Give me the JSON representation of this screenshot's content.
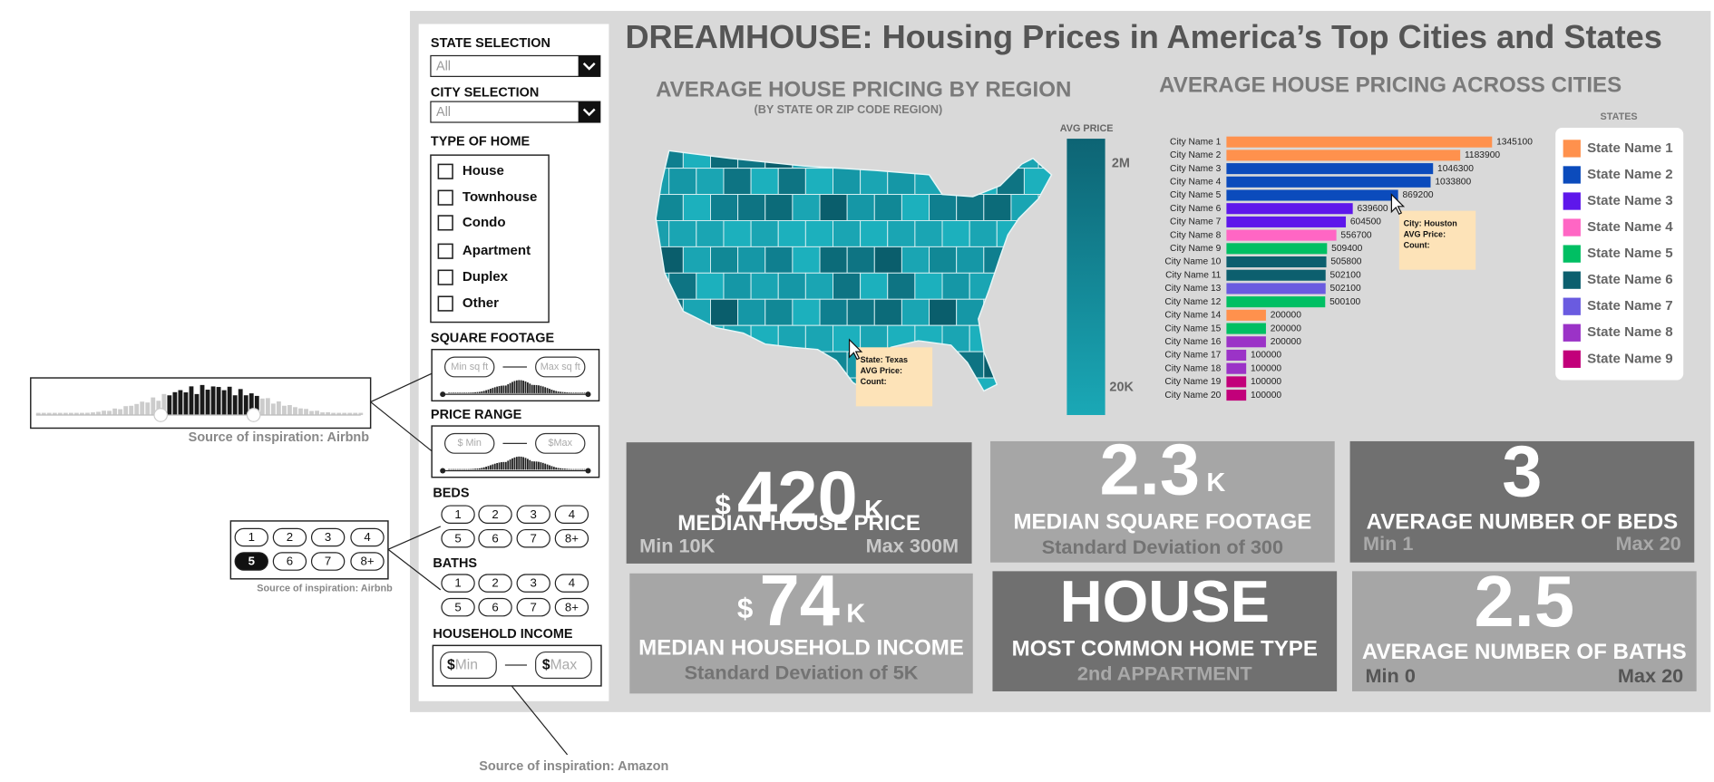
{
  "title": "DREAMHOUSE: Housing Prices in America’s Top Cities and States",
  "filters": {
    "state": {
      "label": "STATE SELECTION",
      "value": "All"
    },
    "city": {
      "label": "CITY SELECTION",
      "value": "All"
    },
    "home_type": {
      "label": "TYPE OF HOME",
      "options": [
        "House",
        "Townhouse",
        "Condo",
        "Apartment",
        "Duplex",
        "Other"
      ]
    },
    "square_footage": {
      "label": "SQUARE FOOTAGE",
      "min": "Min sq ft",
      "max": "Max sq ft"
    },
    "price_range": {
      "label": "PRICE RANGE",
      "min": "$ Min",
      "max": "$Max"
    },
    "beds": {
      "label": "BEDS",
      "options": [
        "1",
        "2",
        "3",
        "4",
        "5",
        "6",
        "7",
        "8+"
      ]
    },
    "baths": {
      "label": "BATHS",
      "options": [
        "1",
        "2",
        "3",
        "4",
        "5",
        "6",
        "7",
        "8+"
      ]
    },
    "household_income": {
      "label": "HOUSEHOLD INCOME",
      "currency": "$",
      "min": "Min",
      "max": "Max"
    }
  },
  "map": {
    "title": "AVERAGE HOUSE PRICING BY REGION",
    "subtitle": "(BY STATE OR ZIP CODE REGION)",
    "legend_title": "AVG  PRICE",
    "legend_ticks": [
      "2M",
      "20K"
    ],
    "tooltip": [
      "State: Texas",
      "AVG Price:",
      "Count:"
    ]
  },
  "chart_data": {
    "type": "bar",
    "title": "AVERAGE HOUSE PRICING ACROSS CITIES",
    "categories": [
      "City Name 1",
      "City Name 2",
      "City Name 3",
      "City Name 4",
      "City Name 5",
      "City Name 6",
      "City Name 7",
      "City Name 8",
      "City Name 9",
      "City Name 10",
      "City Name 11",
      "City Name 13",
      "City Name 12",
      "City Name 14",
      "City Name 15",
      "City Name 16",
      "City Name 17",
      "City Name 18",
      "City Name 19",
      "City Name 20"
    ],
    "values": [
      1345100,
      1183900,
      1046300,
      1033800,
      869200,
      639600,
      604500,
      556700,
      509400,
      505800,
      502100,
      502100,
      500100,
      200000,
      200000,
      200000,
      100000,
      100000,
      100000,
      100000
    ],
    "colors": [
      "#ff914d",
      "#ff914d",
      "#0b4bbc",
      "#0b4bbc",
      "#0b4bbc",
      "#5e17eb",
      "#5e17eb",
      "#ff66c4",
      "#00bf63",
      "#0c5f6e",
      "#0c5f6e",
      "#6a5be0",
      "#00bf63",
      "#ff914d",
      "#00bf63",
      "#9b33c7",
      "#9b33c7",
      "#9b33c7",
      "#c2007a",
      "#c2007a"
    ],
    "legend": {
      "title": "STATES",
      "items": [
        {
          "name": "State Name 1",
          "color": "#ff914d"
        },
        {
          "name": "State Name 2",
          "color": "#0b4bbc"
        },
        {
          "name": "State Name 3",
          "color": "#5e17eb"
        },
        {
          "name": "State Name 4",
          "color": "#ff66c4"
        },
        {
          "name": "State Name 5",
          "color": "#00bf63"
        },
        {
          "name": "State Name 6",
          "color": "#0c5f6e"
        },
        {
          "name": "State Name 7",
          "color": "#6a5be0"
        },
        {
          "name": "State Name 8",
          "color": "#9b33c7"
        },
        {
          "name": "State Name 9",
          "color": "#c2007a"
        }
      ]
    },
    "tooltip": [
      "City: Houston",
      "AVG Price:",
      "Count:"
    ]
  },
  "cards": [
    {
      "prefix": "$",
      "value": 420,
      "suffix": "K",
      "label": "MEDIAN HOUSE PRICE",
      "left": "Min 10K",
      "right": "Max 300M"
    },
    {
      "value": 2.3,
      "suffix": "K",
      "label": "MEDIAN SQUARE FOOTAGE",
      "note": "Standard Deviation of 300"
    },
    {
      "value": 3,
      "label": "AVERAGE NUMBER OF BEDS",
      "left": "Min 1",
      "right": "Max 20"
    },
    {
      "prefix": "$",
      "value": 74,
      "suffix": "K",
      "label": "MEDIAN HOUSEHOLD INCOME",
      "note": "Standard Deviation of 5K"
    },
    {
      "value": "HOUSE",
      "label": "MOST COMMON HOME TYPE",
      "note": "2nd APPARTMENT"
    },
    {
      "value": 2.5,
      "label": "AVERAGE NUMBER OF BATHS",
      "left": "Min 0",
      "right": "Max 20"
    }
  ],
  "annotations": {
    "slider_caption": "Source of inspiration: Airbnb",
    "beds": {
      "options": [
        "1",
        "2",
        "3",
        "4",
        "5",
        "6",
        "7",
        "8+"
      ],
      "selected": "5",
      "caption": "Source of inspiration: Airbnb"
    },
    "income_caption": "Source of inspiration: Amazon"
  }
}
